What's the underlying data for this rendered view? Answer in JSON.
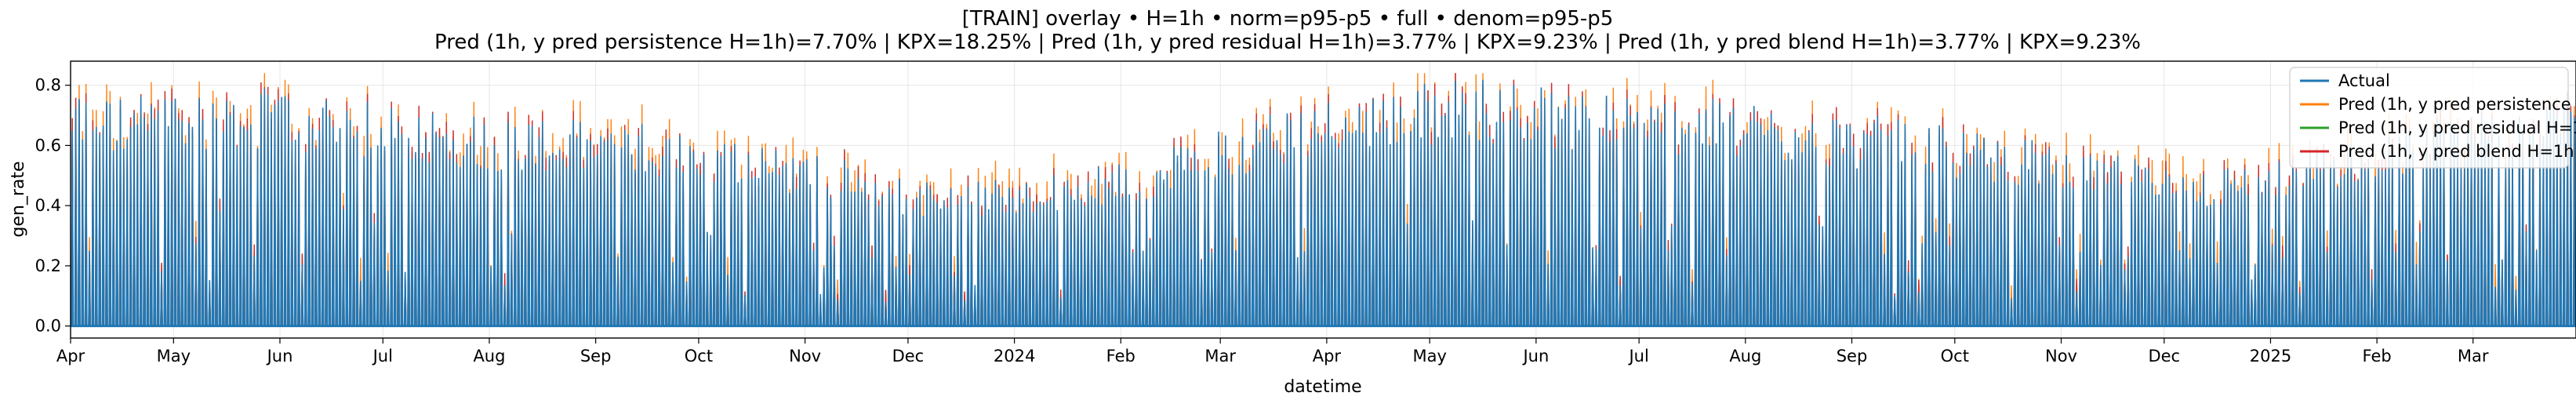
{
  "chart_data": {
    "type": "line",
    "title": "[TRAIN] overlay • H=1h • norm=p95-p5 • full • denom=p95-p5",
    "subtitle": "Pred (1h, y pred persistence H=1h)=7.70% | KPX=18.25% | Pred (1h, y pred residual H=1h)=3.77% | KPX=9.23% | Pred (1h, y pred blend H=1h)=3.77% | KPX=9.23%",
    "xlabel": "datetime",
    "ylabel": "gen_rate",
    "x_range": [
      "2023-04-01",
      "2025-03-31"
    ],
    "ylim": [
      -0.04,
      0.88
    ],
    "y_ticks": [
      0.0,
      0.2,
      0.4,
      0.6,
      0.8
    ],
    "y_tick_labels": [
      "0.0",
      "0.2",
      "0.4",
      "0.6",
      "0.8"
    ],
    "x_ticks": [
      {
        "date": "2023-04-01",
        "label": "Apr"
      },
      {
        "date": "2023-05-01",
        "label": "May"
      },
      {
        "date": "2023-06-01",
        "label": "Jun"
      },
      {
        "date": "2023-07-01",
        "label": "Jul"
      },
      {
        "date": "2023-08-01",
        "label": "Aug"
      },
      {
        "date": "2023-09-01",
        "label": "Sep"
      },
      {
        "date": "2023-10-01",
        "label": "Oct"
      },
      {
        "date": "2023-11-01",
        "label": "Nov"
      },
      {
        "date": "2023-12-01",
        "label": "Dec"
      },
      {
        "date": "2024-01-01",
        "label": "2024"
      },
      {
        "date": "2024-02-01",
        "label": "Feb"
      },
      {
        "date": "2024-03-01",
        "label": "Mar"
      },
      {
        "date": "2024-04-01",
        "label": "Apr"
      },
      {
        "date": "2024-05-01",
        "label": "May"
      },
      {
        "date": "2024-06-01",
        "label": "Jun"
      },
      {
        "date": "2024-07-01",
        "label": "Jul"
      },
      {
        "date": "2024-08-01",
        "label": "Aug"
      },
      {
        "date": "2024-09-01",
        "label": "Sep"
      },
      {
        "date": "2024-10-01",
        "label": "Oct"
      },
      {
        "date": "2024-11-01",
        "label": "Nov"
      },
      {
        "date": "2024-12-01",
        "label": "Dec"
      },
      {
        "date": "2025-01-01",
        "label": "2025"
      },
      {
        "date": "2025-02-01",
        "label": "Feb"
      },
      {
        "date": "2025-03-01",
        "label": "Mar"
      }
    ],
    "grid": true,
    "legend_position": "top-right",
    "series": [
      {
        "name": "Actual",
        "color": "#1f77b4"
      },
      {
        "name": "Pred (1h, y pred persistence H=1h)",
        "color": "#ff7f0e"
      },
      {
        "name": "Pred (1h, y pred residual H=1h)",
        "color": "#2ca02c"
      },
      {
        "name": "Pred (1h, y pred blend H=1h)",
        "color": "#d62728"
      }
    ],
    "daily_peak_envelope": [
      {
        "date": "2023-04-01",
        "value": 0.75
      },
      {
        "date": "2023-04-15",
        "value": 0.72
      },
      {
        "date": "2023-05-01",
        "value": 0.74
      },
      {
        "date": "2023-05-15",
        "value": 0.76
      },
      {
        "date": "2023-06-01",
        "value": 0.74
      },
      {
        "date": "2023-06-15",
        "value": 0.72
      },
      {
        "date": "2023-07-01",
        "value": 0.7
      },
      {
        "date": "2023-07-15",
        "value": 0.69
      },
      {
        "date": "2023-08-01",
        "value": 0.66
      },
      {
        "date": "2023-08-15",
        "value": 0.66
      },
      {
        "date": "2023-09-01",
        "value": 0.64
      },
      {
        "date": "2023-09-15",
        "value": 0.64
      },
      {
        "date": "2023-10-01",
        "value": 0.61
      },
      {
        "date": "2023-10-15",
        "value": 0.58
      },
      {
        "date": "2023-11-01",
        "value": 0.55
      },
      {
        "date": "2023-11-15",
        "value": 0.52
      },
      {
        "date": "2023-12-01",
        "value": 0.46
      },
      {
        "date": "2023-12-15",
        "value": 0.45
      },
      {
        "date": "2024-01-01",
        "value": 0.47
      },
      {
        "date": "2024-01-15",
        "value": 0.48
      },
      {
        "date": "2024-02-01",
        "value": 0.52
      },
      {
        "date": "2024-02-15",
        "value": 0.56
      },
      {
        "date": "2024-03-01",
        "value": 0.62
      },
      {
        "date": "2024-03-15",
        "value": 0.68
      },
      {
        "date": "2024-04-01",
        "value": 0.72
      },
      {
        "date": "2024-04-15",
        "value": 0.74
      },
      {
        "date": "2024-05-01",
        "value": 0.77
      },
      {
        "date": "2024-05-15",
        "value": 0.78
      },
      {
        "date": "2024-06-01",
        "value": 0.76
      },
      {
        "date": "2024-06-15",
        "value": 0.74
      },
      {
        "date": "2024-07-01",
        "value": 0.72
      },
      {
        "date": "2024-07-15",
        "value": 0.72
      },
      {
        "date": "2024-08-01",
        "value": 0.7
      },
      {
        "date": "2024-08-15",
        "value": 0.68
      },
      {
        "date": "2024-09-01",
        "value": 0.67
      },
      {
        "date": "2024-09-15",
        "value": 0.65
      },
      {
        "date": "2024-10-01",
        "value": 0.62
      },
      {
        "date": "2024-10-15",
        "value": 0.6
      },
      {
        "date": "2024-11-01",
        "value": 0.57
      },
      {
        "date": "2024-11-15",
        "value": 0.54
      },
      {
        "date": "2024-12-01",
        "value": 0.51
      },
      {
        "date": "2024-12-15",
        "value": 0.5
      },
      {
        "date": "2025-01-01",
        "value": 0.52
      },
      {
        "date": "2025-01-15",
        "value": 0.56
      },
      {
        "date": "2025-02-01",
        "value": 0.6
      },
      {
        "date": "2025-02-15",
        "value": 0.64
      },
      {
        "date": "2025-03-01",
        "value": 0.68
      },
      {
        "date": "2025-03-15",
        "value": 0.7
      },
      {
        "date": "2025-03-31",
        "value": 0.72
      }
    ]
  }
}
